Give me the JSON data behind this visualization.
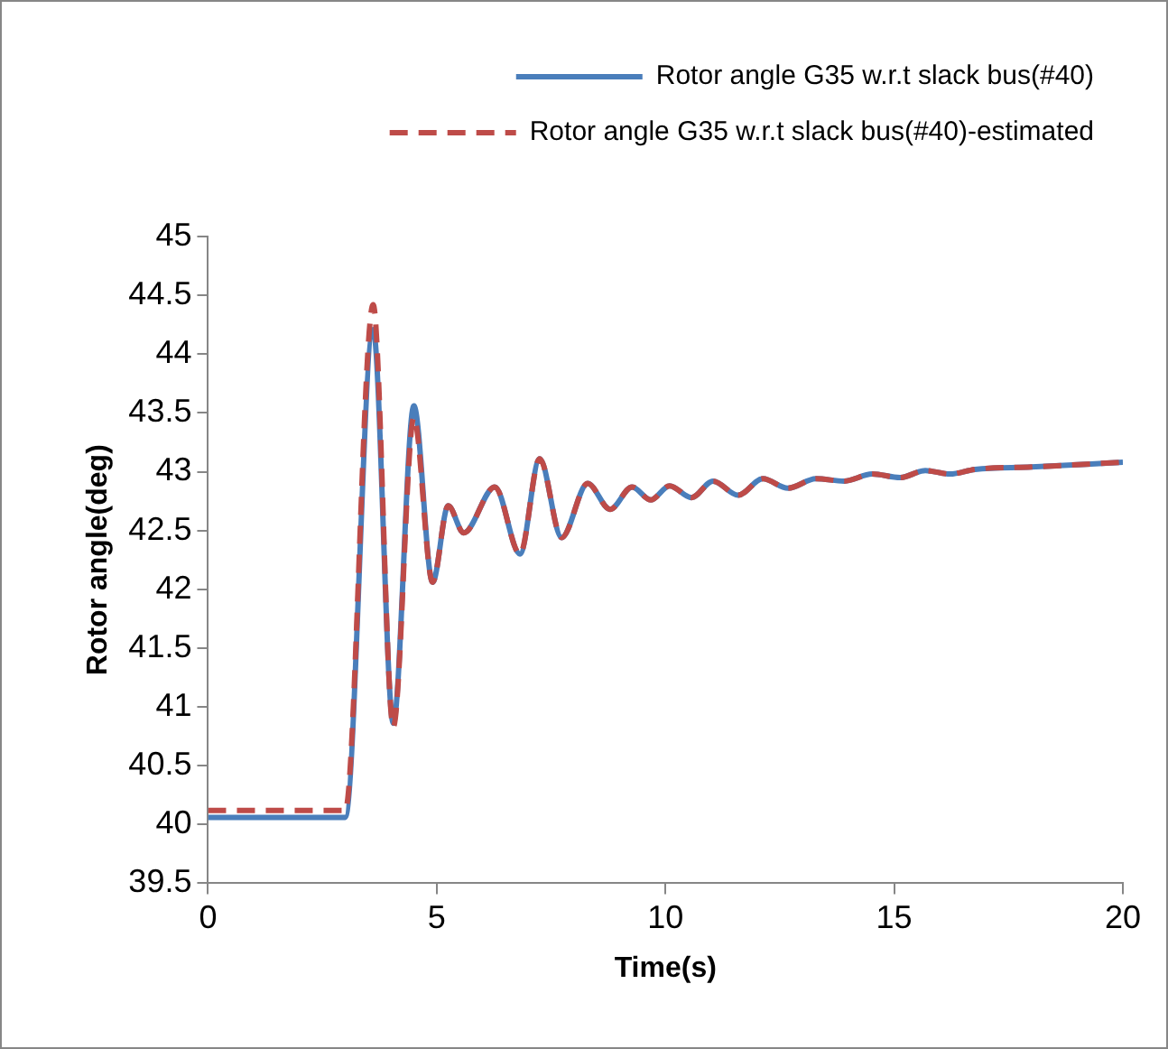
{
  "chart_data": {
    "type": "line",
    "xlabel": "Time(s)",
    "ylabel": "Rotor angle(deg)",
    "x": [
      0,
      3.0,
      3.61,
      4.05,
      4.5,
      4.91,
      5.25,
      5.59,
      6.27,
      6.82,
      7.25,
      7.73,
      8.3,
      8.79,
      9.27,
      9.68,
      10.09,
      10.57,
      11.04,
      11.59,
      12.13,
      12.68,
      13.29,
      13.91,
      14.52,
      15.13,
      15.68,
      16.22,
      16.77,
      18.0,
      20
    ],
    "series": [
      {
        "name": "Rotor angle G35 w.r.t slack bus(#40)",
        "color": "#4a7ebb",
        "line_style": "solid",
        "values": [
          40.06,
          40.06,
          44.21,
          40.86,
          43.56,
          42.06,
          42.71,
          42.48,
          42.87,
          42.3,
          43.11,
          42.44,
          42.9,
          42.68,
          42.87,
          42.76,
          42.88,
          42.78,
          42.92,
          42.8,
          42.94,
          42.86,
          42.94,
          42.92,
          42.98,
          42.95,
          43.01,
          42.98,
          43.02,
          43.04,
          43.08
        ]
      },
      {
        "name": "Rotor angle G35 w.r.t slack bus(#40)-estimated",
        "color": "#be4b48",
        "line_style": "dashed",
        "values": [
          40.12,
          40.12,
          44.42,
          40.83,
          43.46,
          42.06,
          42.71,
          42.48,
          42.87,
          42.3,
          43.11,
          42.44,
          42.9,
          42.68,
          42.87,
          42.76,
          42.88,
          42.78,
          42.92,
          42.8,
          42.94,
          42.86,
          42.94,
          42.92,
          42.98,
          42.95,
          43.01,
          42.98,
          43.02,
          43.04,
          43.08
        ]
      }
    ],
    "xlim": [
      0,
      20
    ],
    "xticks": [
      0,
      5,
      10,
      15,
      20
    ],
    "ylim": [
      39.5,
      45
    ],
    "yticks": [
      39.5,
      40,
      40.5,
      41,
      41.5,
      42,
      42.5,
      43,
      43.5,
      44,
      44.5,
      45
    ],
    "grid": false,
    "legend": "top right",
    "marker": "none"
  }
}
